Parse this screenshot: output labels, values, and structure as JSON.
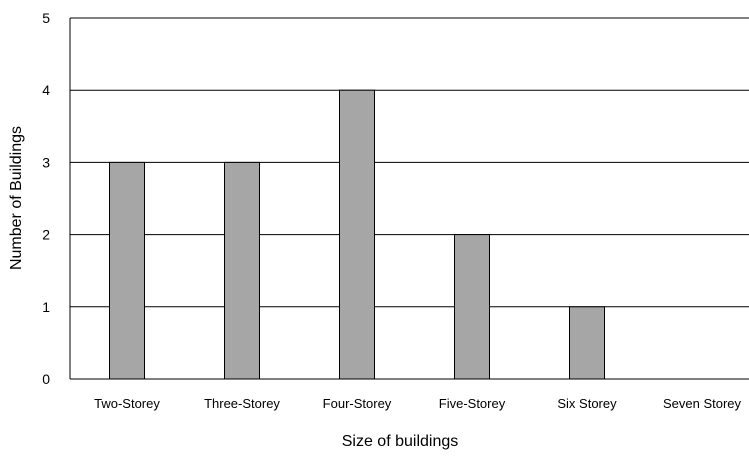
{
  "chart_data": {
    "type": "bar",
    "title": "",
    "xlabel": "Size of buildings",
    "ylabel": "Number of Buildings",
    "categories": [
      "Two-Storey",
      "Three-Storey",
      "Four-Storey",
      "Five-Storey",
      "Six Storey",
      "Seven Storey"
    ],
    "values": [
      3,
      3,
      4,
      2,
      1,
      0
    ],
    "ylim": [
      0,
      5
    ],
    "yticks": [
      0,
      1,
      2,
      3,
      4,
      5
    ],
    "grid": true,
    "legend": "none",
    "bar_color": "#a6a6a6",
    "bar_edge_color": "#000000"
  }
}
